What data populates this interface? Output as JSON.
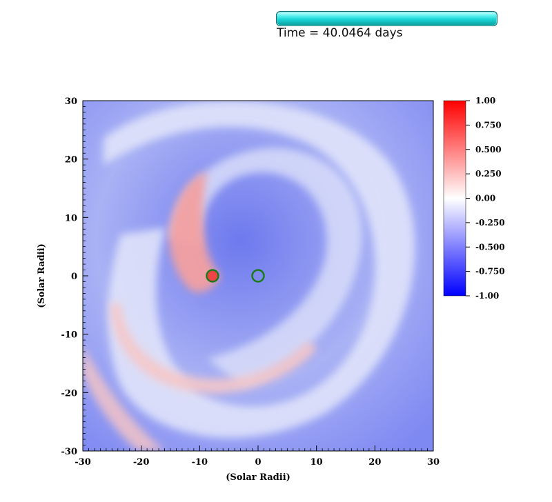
{
  "header": {
    "time_text": "Time = 40.0464 days"
  },
  "chart_data": {
    "type": "heatmap",
    "xlabel": "(Solar Radii)",
    "ylabel": "(Solar Radii)",
    "xlim": [
      -30,
      30
    ],
    "ylim": [
      -30,
      30
    ],
    "x_ticks": [
      -30,
      -20,
      -10,
      0,
      10,
      20,
      30
    ],
    "y_ticks": [
      -30,
      -20,
      -10,
      0,
      10,
      20,
      30
    ],
    "colorbar": {
      "range": [
        -1.0,
        1.0
      ],
      "ticks": [
        "1.00",
        "0.750",
        "0.500",
        "0.250",
        "0.00",
        "-0.250",
        "-0.500",
        "-0.750",
        "-1.00"
      ],
      "colors": {
        "high": "#ff0000",
        "mid": "#ffffff",
        "low": "#0000ff"
      }
    },
    "markers": [
      {
        "name": "star-1",
        "x": -7.8,
        "y": 0,
        "radius": 1.0,
        "color": "#1a7a1a"
      },
      {
        "name": "star-2",
        "x": 0,
        "y": 0,
        "radius": 1.0,
        "color": "#1a7a1a"
      }
    ]
  }
}
